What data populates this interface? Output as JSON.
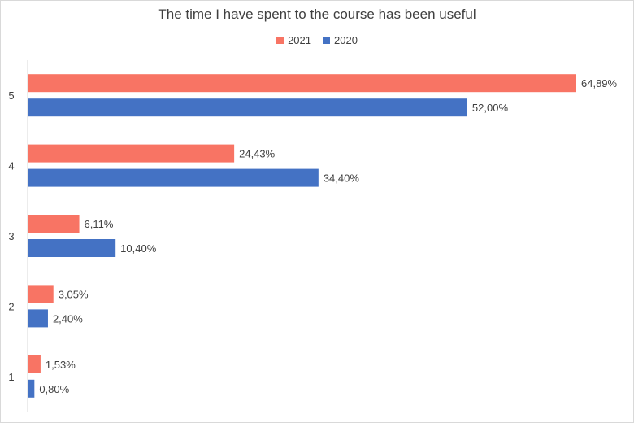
{
  "chart_data": {
    "type": "bar",
    "orientation": "horizontal",
    "title": "The time I have spent to the course has been useful",
    "categories": [
      "5",
      "4",
      "3",
      "2",
      "1"
    ],
    "series": [
      {
        "name": "2021",
        "color": "#F87464",
        "values": [
          64.89,
          24.43,
          6.11,
          3.05,
          1.53
        ],
        "labels": [
          "64,89%",
          "24,43%",
          "6,11%",
          "3,05%",
          "1,53%"
        ]
      },
      {
        "name": "2020",
        "color": "#4472C4",
        "values": [
          52.0,
          34.4,
          10.4,
          2.4,
          0.8
        ],
        "labels": [
          "52,00%",
          "34,40%",
          "10,40%",
          "2,40%",
          "0,80%"
        ]
      }
    ],
    "xlim": [
      0,
      70
    ],
    "grid": false,
    "legend_position": "top"
  }
}
